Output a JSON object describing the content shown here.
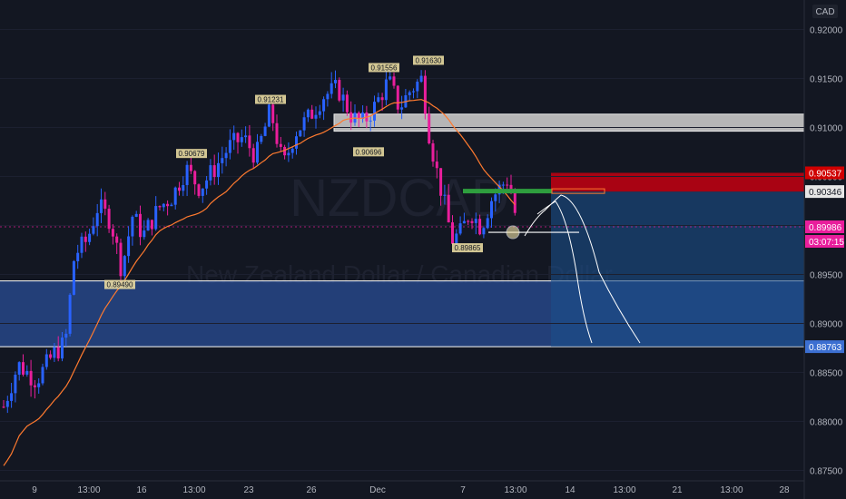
{
  "chart_data": {
    "type": "candlestick",
    "symbol_watermark": "NZDCAD",
    "description_watermark": "New Zealand Dollar / Canadian Dollar",
    "currency_label": "CAD",
    "y_ticks": [
      "0.92000",
      "0.91500",
      "0.91000",
      "0.90500",
      "0.90000",
      "0.89500",
      "0.89000",
      "0.88500",
      "0.88000",
      "0.87500"
    ],
    "y_tick_values": [
      0.92,
      0.915,
      0.91,
      0.905,
      0.9,
      0.895,
      0.89,
      0.885,
      0.88,
      0.875
    ],
    "ylim": [
      0.8733,
      0.9216
    ],
    "x_ticks": [
      "9",
      "13:00",
      "16",
      "13:00",
      "23",
      "26",
      "Dec",
      "7",
      "13:00",
      "14",
      "13:00",
      "21",
      "13:00",
      "28"
    ],
    "annotations": [
      {
        "text": "0.89490",
        "value": 0.8949
      },
      {
        "text": "0.90679",
        "value": 0.90679
      },
      {
        "text": "0.91231",
        "value": 0.91231
      },
      {
        "text": "0.91556",
        "value": 0.91556
      },
      {
        "text": "0.91630",
        "value": 0.9163
      },
      {
        "text": "0.90696",
        "value": 0.90696
      },
      {
        "text": "0.89865",
        "value": 0.89865
      }
    ],
    "price_tags": [
      {
        "text": "0.90537",
        "value": 0.90537,
        "bg": "#d00000",
        "fg": "#ffffff"
      },
      {
        "text": "0.90346",
        "value": 0.90346,
        "bg": "#e6e6e6",
        "fg": "#131722"
      },
      {
        "text": "0.89986",
        "value": 0.89986,
        "bg": "#e91e9c",
        "fg": "#ffffff"
      },
      {
        "text": "03:07:15",
        "value": 0.89986,
        "bg": "#e91e9c",
        "fg": "#ffffff"
      },
      {
        "text": "0.88763",
        "value": 0.88763,
        "bg": "#3c6fd1",
        "fg": "#ffffff"
      }
    ],
    "zones": {
      "demand_zone": [
        0.88763,
        0.89434
      ],
      "supply_zone": [
        0.90962,
        0.91136
      ],
      "stop_zone": [
        0.90346,
        0.90537
      ],
      "target_zone": [
        0.88763,
        0.90346
      ]
    },
    "current_price": 0.89986,
    "colors": {
      "up": "#2962ff",
      "down": "#e91e9c",
      "ma": "#ff7a2f",
      "background": "#131722"
    }
  }
}
